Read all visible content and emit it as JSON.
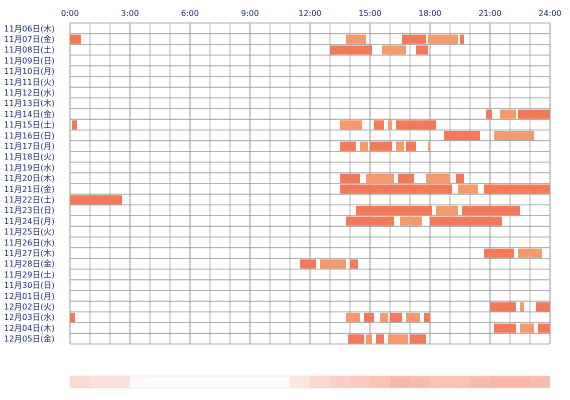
{
  "chart_data": {
    "type": "timeline",
    "x_axis": {
      "range_hours": [
        0,
        24
      ],
      "tick_labels": [
        "0:00",
        "3:00",
        "6:00",
        "9:00",
        "12:00",
        "15:00",
        "18:00",
        "21:00",
        "24:00"
      ]
    },
    "grid": true,
    "colors": {
      "bar_a": "#f27a5a",
      "bar_b": "#f59a6c",
      "grid": "#999999",
      "axis_text": "#1a2a6c"
    },
    "rows": [
      {
        "label": "11月06日(木)",
        "bars": []
      },
      {
        "label": "11月07日(金)",
        "bars": [
          [
            0.0,
            0.55
          ],
          [
            13.8,
            14.8
          ],
          [
            16.6,
            17.8
          ],
          [
            17.9,
            19.4
          ],
          [
            19.5,
            19.7
          ]
        ]
      },
      {
        "label": "11月08日(土)",
        "bars": [
          [
            13.0,
            15.1
          ],
          [
            15.6,
            16.8
          ],
          [
            17.3,
            17.9
          ]
        ]
      },
      {
        "label": "11月09日(日)",
        "bars": []
      },
      {
        "label": "11月10日(月)",
        "bars": []
      },
      {
        "label": "11月11日(火)",
        "bars": []
      },
      {
        "label": "11月12日(水)",
        "bars": []
      },
      {
        "label": "11月13日(木)",
        "bars": []
      },
      {
        "label": "11月14日(金)",
        "bars": [
          [
            20.8,
            21.1
          ],
          [
            21.5,
            22.3
          ],
          [
            22.4,
            24.0
          ]
        ]
      },
      {
        "label": "11月15日(土)",
        "bars": [
          [
            0.1,
            0.35
          ],
          [
            13.5,
            14.6
          ],
          [
            15.2,
            15.7
          ],
          [
            15.9,
            16.1
          ],
          [
            16.3,
            18.3
          ]
        ]
      },
      {
        "label": "11月16日(日)",
        "bars": [
          [
            18.7,
            20.5
          ],
          [
            21.2,
            23.2
          ]
        ]
      },
      {
        "label": "11月17日(月)",
        "bars": [
          [
            13.5,
            14.3
          ],
          [
            14.5,
            14.9
          ],
          [
            15.0,
            16.1
          ],
          [
            16.3,
            16.7
          ],
          [
            16.8,
            17.3
          ],
          [
            17.9,
            18.0
          ]
        ]
      },
      {
        "label": "11月18日(火)",
        "bars": []
      },
      {
        "label": "11月19日(水)",
        "bars": []
      },
      {
        "label": "11月20日(木)",
        "bars": [
          [
            13.5,
            14.5
          ],
          [
            14.8,
            16.2
          ],
          [
            16.4,
            17.2
          ],
          [
            17.8,
            19.0
          ],
          [
            19.3,
            19.7
          ]
        ]
      },
      {
        "label": "11月21日(金)",
        "bars": [
          [
            13.5,
            19.1
          ],
          [
            19.4,
            20.4
          ],
          [
            20.7,
            24.0
          ]
        ]
      },
      {
        "label": "11月22日(土)",
        "bars": [
          [
            0.0,
            2.6
          ]
        ]
      },
      {
        "label": "11月23日(日)",
        "bars": [
          [
            14.3,
            18.1
          ],
          [
            18.3,
            19.4
          ],
          [
            19.6,
            22.5
          ]
        ]
      },
      {
        "label": "11月24日(月)",
        "bars": [
          [
            13.8,
            16.2
          ],
          [
            16.5,
            17.6
          ],
          [
            18.0,
            21.6
          ]
        ]
      },
      {
        "label": "11月25日(火)",
        "bars": []
      },
      {
        "label": "11月26日(水)",
        "bars": []
      },
      {
        "label": "11月27日(木)",
        "bars": [
          [
            20.7,
            22.2
          ],
          [
            22.4,
            23.6
          ]
        ]
      },
      {
        "label": "11月28日(金)",
        "bars": [
          [
            11.5,
            12.3
          ],
          [
            12.5,
            13.8
          ],
          [
            14.0,
            14.4
          ]
        ]
      },
      {
        "label": "11月29日(土)",
        "bars": []
      },
      {
        "label": "11月30日(日)",
        "bars": []
      },
      {
        "label": "12月01日(月)",
        "bars": []
      },
      {
        "label": "12月02日(火)",
        "bars": [
          [
            21.0,
            22.3
          ],
          [
            22.5,
            22.7
          ],
          [
            23.3,
            24.0
          ]
        ]
      },
      {
        "label": "12月03日(水)",
        "bars": [
          [
            0.0,
            0.25
          ],
          [
            13.8,
            14.5
          ],
          [
            14.7,
            15.2
          ],
          [
            15.5,
            15.9
          ],
          [
            16.0,
            16.6
          ],
          [
            16.8,
            17.5
          ],
          [
            17.7,
            18.0
          ]
        ]
      },
      {
        "label": "12月04日(木)",
        "bars": [
          [
            21.2,
            22.3
          ],
          [
            22.5,
            23.2
          ],
          [
            23.4,
            24.0
          ]
        ]
      },
      {
        "label": "12月05日(金)",
        "bars": [
          [
            13.9,
            14.7
          ],
          [
            14.8,
            15.1
          ],
          [
            15.3,
            15.7
          ],
          [
            15.9,
            16.9
          ],
          [
            17.0,
            17.8
          ]
        ]
      }
    ],
    "frequency_strip": {
      "base_color": "#f27a5a",
      "hourly_intensity": [
        0.28,
        0.22,
        0.22,
        0.04,
        0.03,
        0.03,
        0.03,
        0.03,
        0.03,
        0.03,
        0.03,
        0.18,
        0.3,
        0.35,
        0.4,
        0.45,
        0.55,
        0.5,
        0.45,
        0.45,
        0.5,
        0.55,
        0.55,
        0.5
      ]
    }
  }
}
